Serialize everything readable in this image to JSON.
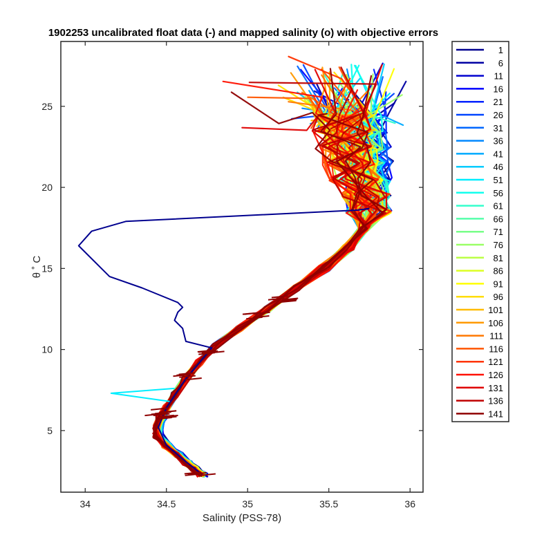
{
  "chart_data": {
    "type": "line",
    "title": "1902253 uncalibrated float data (-) and mapped salinity (o) with objective errors",
    "xlabel": "Salinity (PSS-78)",
    "ylabel": "θ ˚ C",
    "xlim": [
      33.85,
      36.08
    ],
    "ylim": [
      1.2,
      29.0
    ],
    "x_ticks": [
      34,
      34.5,
      35,
      35.5,
      36
    ],
    "x_tick_labels": [
      "34",
      "34.5",
      "35",
      "35.5",
      "36"
    ],
    "y_ticks": [
      5,
      10,
      15,
      20,
      25
    ],
    "y_tick_labels": [
      "5",
      "10",
      "15",
      "20",
      "25"
    ],
    "grid": false,
    "legend_position": "outside-right",
    "mean_profile": [
      {
        "s": 34.72,
        "t": 2.3
      },
      {
        "s": 34.68,
        "t": 2.6
      },
      {
        "s": 34.63,
        "t": 3.0
      },
      {
        "s": 34.57,
        "t": 3.5
      },
      {
        "s": 34.5,
        "t": 4.1
      },
      {
        "s": 34.45,
        "t": 4.7
      },
      {
        "s": 34.45,
        "t": 5.2
      },
      {
        "s": 34.47,
        "t": 5.8
      },
      {
        "s": 34.5,
        "t": 6.4
      },
      {
        "s": 34.55,
        "t": 7.2
      },
      {
        "s": 34.62,
        "t": 8.2
      },
      {
        "s": 34.7,
        "t": 9.2
      },
      {
        "s": 34.8,
        "t": 10.2
      },
      {
        "s": 34.95,
        "t": 11.3
      },
      {
        "s": 35.12,
        "t": 12.5
      },
      {
        "s": 35.3,
        "t": 13.8
      },
      {
        "s": 35.47,
        "t": 15.0
      },
      {
        "s": 35.62,
        "t": 16.3
      },
      {
        "s": 35.72,
        "t": 17.5
      },
      {
        "s": 35.75,
        "t": 18.5
      },
      {
        "s": 35.73,
        "t": 19.5
      },
      {
        "s": 35.7,
        "t": 20.5
      },
      {
        "s": 35.68,
        "t": 21.5
      },
      {
        "s": 35.66,
        "t": 22.5
      },
      {
        "s": 35.64,
        "t": 23.5
      },
      {
        "s": 35.62,
        "t": 24.5
      }
    ],
    "profile_1_anomaly": [
      {
        "s": 34.72,
        "t": 2.3
      },
      {
        "s": 34.63,
        "t": 3.0
      },
      {
        "s": 34.5,
        "t": 4.1
      },
      {
        "s": 34.45,
        "t": 5.2
      },
      {
        "s": 34.5,
        "t": 6.4
      },
      {
        "s": 34.62,
        "t": 8.2
      },
      {
        "s": 34.78,
        "t": 10.1
      },
      {
        "s": 34.62,
        "t": 10.5
      },
      {
        "s": 34.6,
        "t": 11.3
      },
      {
        "s": 34.55,
        "t": 11.8
      },
      {
        "s": 34.57,
        "t": 12.3
      },
      {
        "s": 34.6,
        "t": 12.6
      },
      {
        "s": 34.57,
        "t": 12.9
      },
      {
        "s": 34.35,
        "t": 13.8
      },
      {
        "s": 34.15,
        "t": 14.5
      },
      {
        "s": 34.1,
        "t": 15.0
      },
      {
        "s": 33.96,
        "t": 16.4
      },
      {
        "s": 34.04,
        "t": 17.3
      },
      {
        "s": 34.25,
        "t": 17.9
      },
      {
        "s": 35.68,
        "t": 18.6
      },
      {
        "s": 35.75,
        "t": 18.7
      }
    ],
    "profile_51_anomaly": [
      {
        "s": 34.55,
        "t": 7.6
      },
      {
        "s": 34.16,
        "t": 7.3
      },
      {
        "s": 34.52,
        "t": 6.8
      }
    ],
    "series": [
      {
        "name": "1",
        "color": "#00008f"
      },
      {
        "name": "6",
        "color": "#0000a3"
      },
      {
        "name": "11",
        "color": "#0000cf"
      },
      {
        "name": "16",
        "color": "#0000ff"
      },
      {
        "name": "21",
        "color": "#0022ff"
      },
      {
        "name": "26",
        "color": "#0044ff"
      },
      {
        "name": "31",
        "color": "#0066ff"
      },
      {
        "name": "36",
        "color": "#0088ff"
      },
      {
        "name": "41",
        "color": "#00aaff"
      },
      {
        "name": "46",
        "color": "#00ccff"
      },
      {
        "name": "51",
        "color": "#00eeff"
      },
      {
        "name": "56",
        "color": "#11ffee"
      },
      {
        "name": "61",
        "color": "#33ffcc"
      },
      {
        "name": "66",
        "color": "#55ffaa"
      },
      {
        "name": "71",
        "color": "#77ff88"
      },
      {
        "name": "76",
        "color": "#99ff66"
      },
      {
        "name": "81",
        "color": "#bbff44"
      },
      {
        "name": "86",
        "color": "#ddff22"
      },
      {
        "name": "91",
        "color": "#ffff00"
      },
      {
        "name": "96",
        "color": "#ffdd00"
      },
      {
        "name": "101",
        "color": "#ffbb00"
      },
      {
        "name": "106",
        "color": "#ff9900"
      },
      {
        "name": "111",
        "color": "#ff7700"
      },
      {
        "name": "116",
        "color": "#ff5500"
      },
      {
        "name": "121",
        "color": "#ff3300"
      },
      {
        "name": "126",
        "color": "#ff1100"
      },
      {
        "name": "131",
        "color": "#df0000"
      },
      {
        "name": "136",
        "color": "#bf0000"
      },
      {
        "name": "141",
        "color": "#8f0000"
      }
    ]
  }
}
